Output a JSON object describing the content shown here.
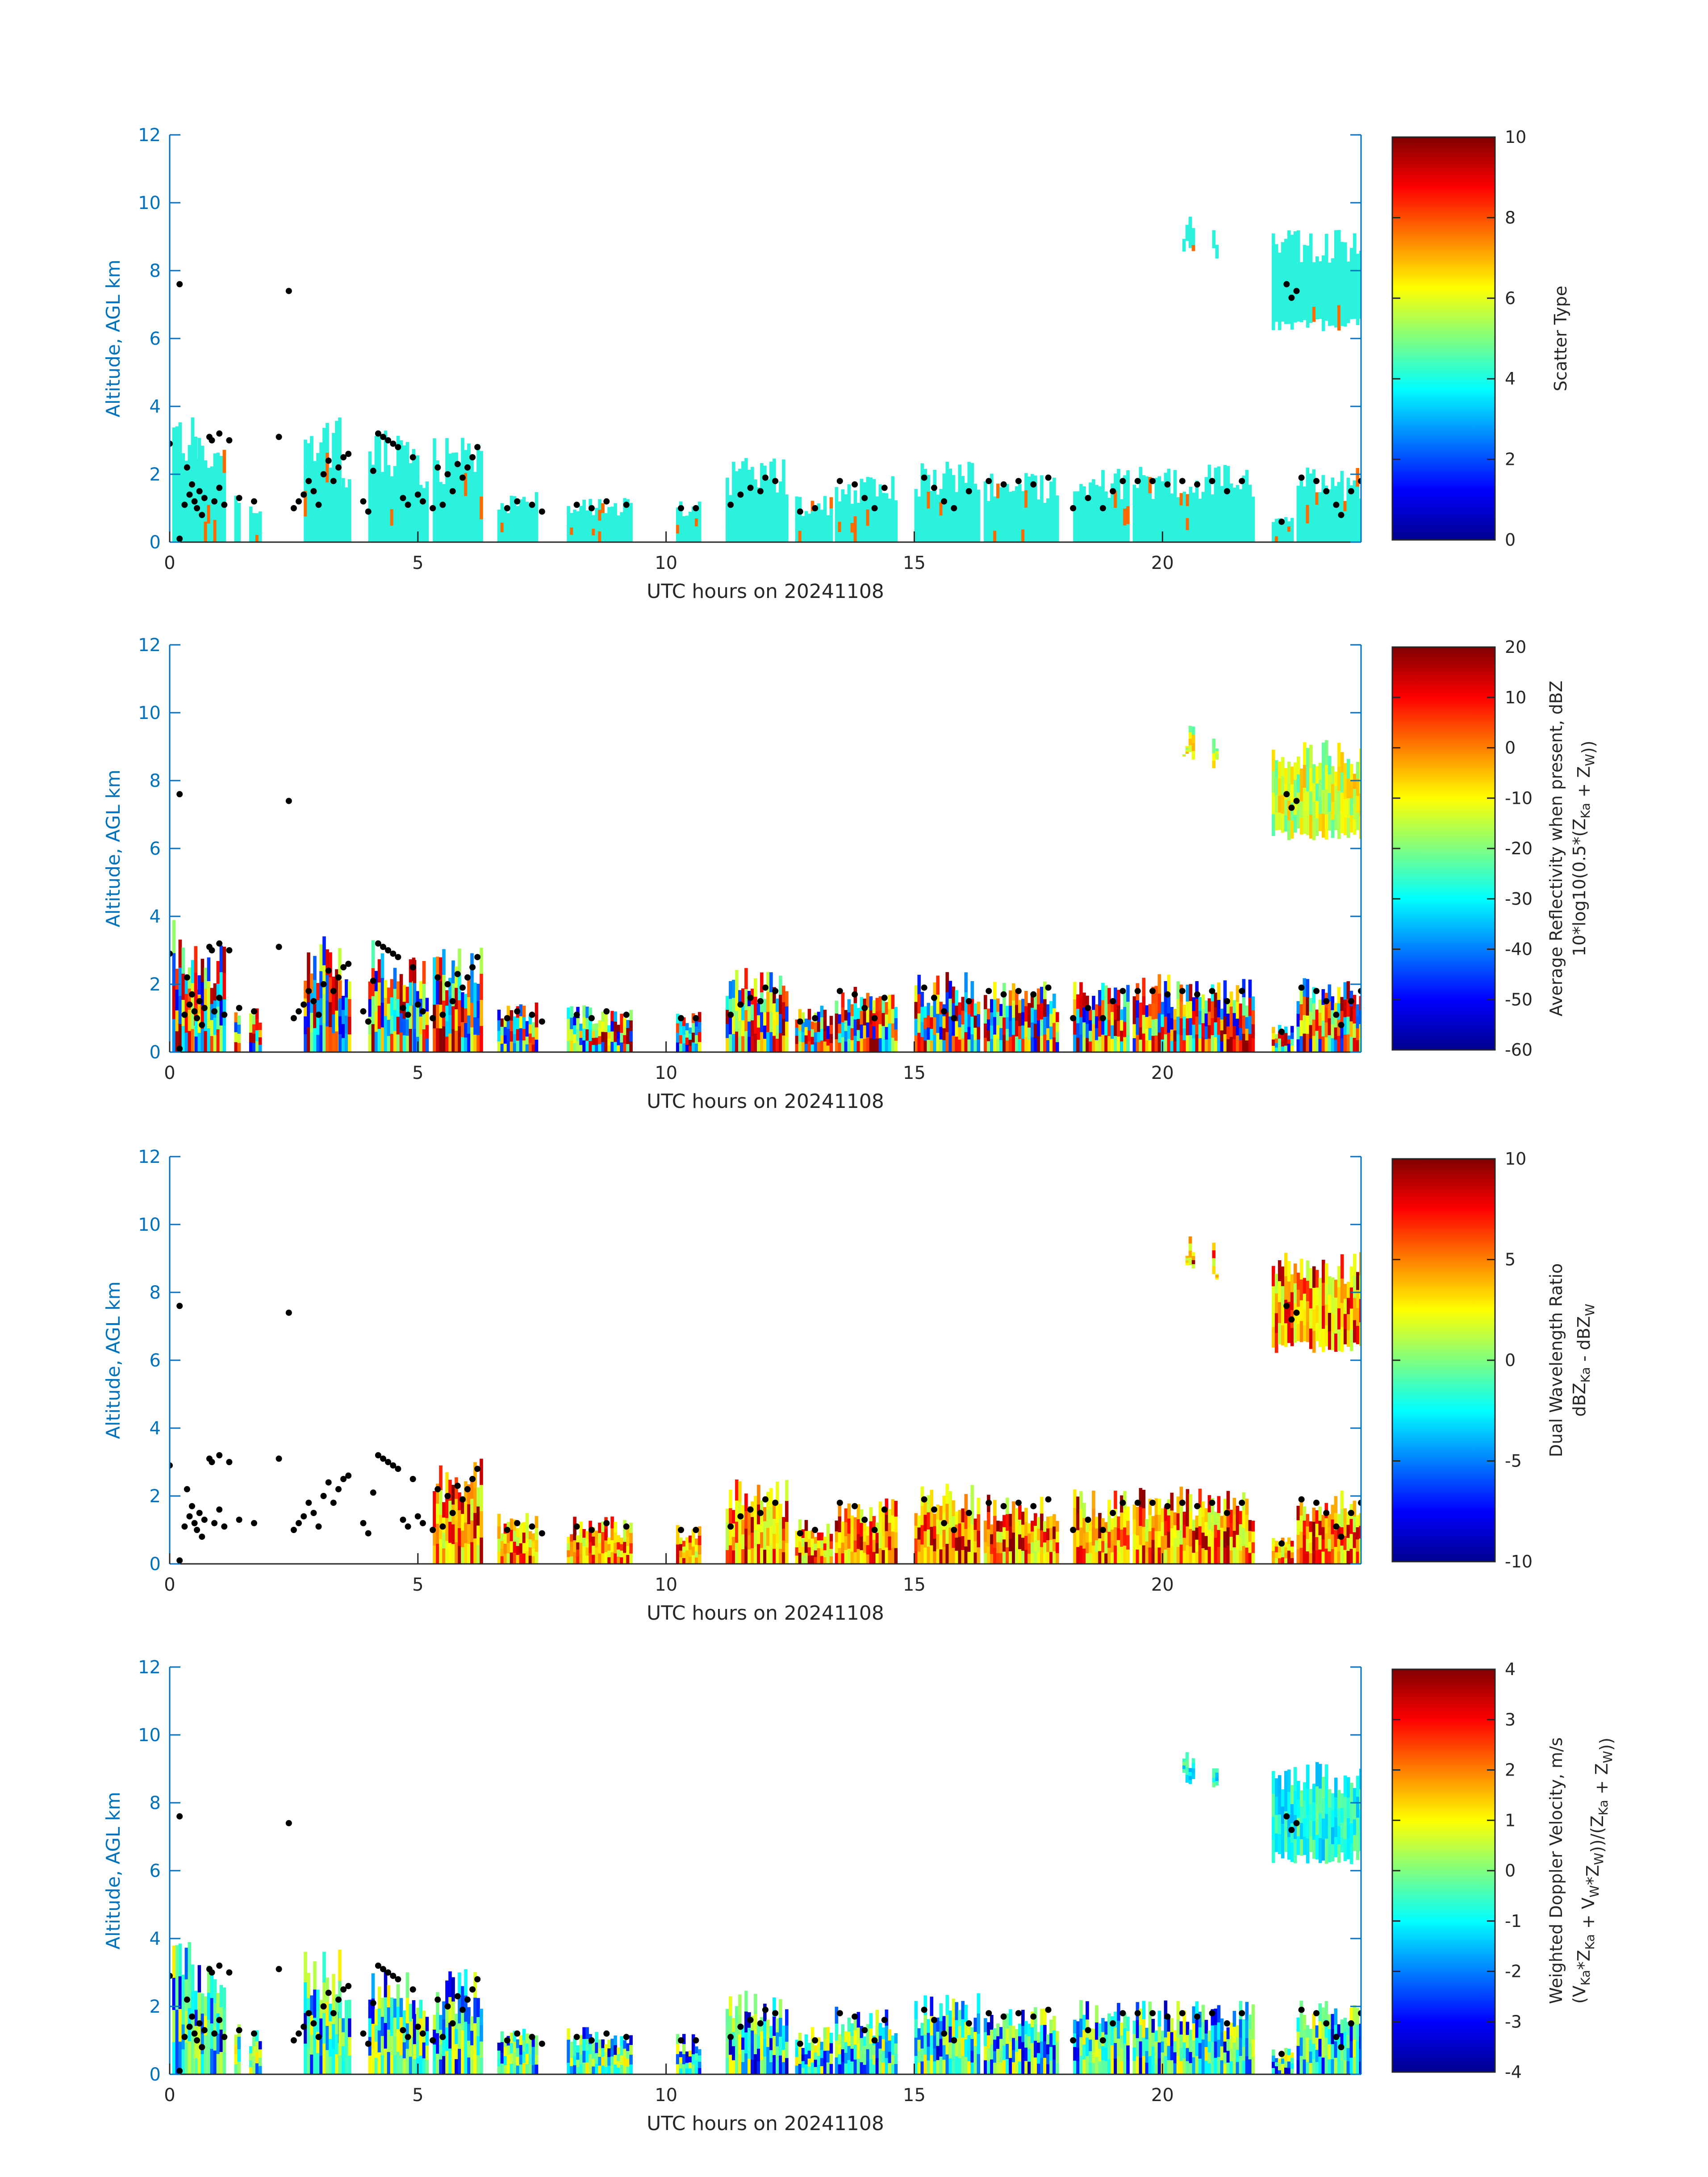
{
  "figure": {
    "xlabel": "UTC hours on 20241108",
    "ylabel": "Altitude, AGL km"
  },
  "chart_data": [
    {
      "type": "heatmap",
      "panel": "scatter-type",
      "xlim": [
        0,
        24
      ],
      "ylim": [
        0,
        12
      ],
      "x_ticks": [
        "0",
        "5",
        "10",
        "15",
        "20"
      ],
      "y_ticks": [
        "0",
        "2",
        "4",
        "6",
        "8",
        "10",
        "12"
      ],
      "colorbar": {
        "label_lines": [
          "Scatter Type"
        ],
        "range": [
          0,
          10
        ],
        "ticks": [
          "0",
          "2",
          "4",
          "6",
          "8",
          "10"
        ]
      },
      "description_mode": "mostly-cyan"
    },
    {
      "type": "heatmap",
      "panel": "reflectivity",
      "xlim": [
        0,
        24
      ],
      "ylim": [
        0,
        12
      ],
      "x_ticks": [
        "0",
        "5",
        "10",
        "15",
        "20"
      ],
      "y_ticks": [
        "0",
        "2",
        "4",
        "6",
        "8",
        "10",
        "12"
      ],
      "colorbar": {
        "label_lines": [
          "Average Reflectivity when present, dBZ",
          "10*log10(0.5*(Z_Ka + Z_W))"
        ],
        "range": [
          -60,
          20
        ],
        "ticks": [
          "-60",
          "-50",
          "-40",
          "-30",
          "-20",
          "-10",
          "0",
          "10",
          "20"
        ]
      },
      "description_mode": "reflectivity"
    },
    {
      "type": "heatmap",
      "panel": "dual-wavelength-ratio",
      "xlim": [
        0,
        24
      ],
      "ylim": [
        0,
        12
      ],
      "x_ticks": [
        "0",
        "5",
        "10",
        "15",
        "20"
      ],
      "y_ticks": [
        "0",
        "2",
        "4",
        "6",
        "8",
        "10",
        "12"
      ],
      "colorbar": {
        "label_lines": [
          "Dual Wavelength Ratio",
          "dBZ_Ka - dBZ_W"
        ],
        "range": [
          -10,
          10
        ],
        "ticks": [
          "-10",
          "-5",
          "0",
          "5",
          "10"
        ]
      },
      "description_mode": "dwr"
    },
    {
      "type": "heatmap",
      "panel": "doppler-velocity",
      "xlim": [
        0,
        24
      ],
      "ylim": [
        0,
        12
      ],
      "x_ticks": [
        "0",
        "5",
        "10",
        "15",
        "20"
      ],
      "y_ticks": [
        "0",
        "2",
        "4",
        "6",
        "8",
        "10",
        "12"
      ],
      "colorbar": {
        "label_lines": [
          "Weighted Doppler Velocity, m/s",
          "(V_Ka*Z_Ka + V_W*Z_W))/(Z_Ka + Z_W))"
        ],
        "range": [
          -4,
          4
        ],
        "ticks": [
          "-4",
          "-3",
          "-2",
          "-1",
          "0",
          "1",
          "2",
          "3",
          "4"
        ]
      },
      "description_mode": "velocity"
    }
  ],
  "cloud_regions": [
    {
      "x0": 0.05,
      "x1": 0.5,
      "ytop": 4.0
    },
    {
      "x0": 0.5,
      "x1": 1.1,
      "ytop": 3.3
    },
    {
      "x0": 1.3,
      "x1": 1.4,
      "ytop": 1.5
    },
    {
      "x0": 1.6,
      "x1": 1.8,
      "ytop": 1.3
    },
    {
      "x0": 2.7,
      "x1": 3.4,
      "ytop": 3.7
    },
    {
      "x0": 3.4,
      "x1": 3.6,
      "ytop": 2.4
    },
    {
      "x0": 4.0,
      "x1": 4.9,
      "ytop": 3.3
    },
    {
      "x0": 4.9,
      "x1": 5.2,
      "ytop": 2.8
    },
    {
      "x0": 5.3,
      "x1": 6.3,
      "ytop": 3.1
    },
    {
      "x0": 6.6,
      "x1": 7.4,
      "ytop": 1.5
    },
    {
      "x0": 8.0,
      "x1": 9.3,
      "ytop": 1.4
    },
    {
      "x0": 10.2,
      "x1": 10.7,
      "ytop": 1.2
    },
    {
      "x0": 11.2,
      "x1": 12.4,
      "ytop": 2.5
    },
    {
      "x0": 12.6,
      "x1": 13.3,
      "ytop": 1.4
    },
    {
      "x0": 13.4,
      "x1": 14.6,
      "ytop": 2.0
    },
    {
      "x0": 15.0,
      "x1": 16.3,
      "ytop": 2.4
    },
    {
      "x0": 16.4,
      "x1": 17.9,
      "ytop": 2.1
    },
    {
      "x0": 18.2,
      "x1": 19.3,
      "ytop": 2.2
    },
    {
      "x0": 19.4,
      "x1": 21.8,
      "ytop": 2.3
    },
    {
      "x0": 22.2,
      "x1": 22.6,
      "ytop": 0.8
    },
    {
      "x0": 22.7,
      "x1": 24.0,
      "ytop": 2.2
    },
    {
      "x0": 20.4,
      "x1": 20.6,
      "ytop": 9.7,
      "ybot": 8.5
    },
    {
      "x0": 21.0,
      "x1": 21.1,
      "ytop": 9.5,
      "ybot": 8.3
    },
    {
      "x0": 22.2,
      "x1": 24.0,
      "ytop": 9.2,
      "ybot": 6.2
    }
  ],
  "cloud_base_points": [
    [
      0.0,
      2.9
    ],
    [
      0.2,
      7.6
    ],
    [
      0.2,
      0.1
    ],
    [
      0.3,
      1.1
    ],
    [
      0.35,
      2.2
    ],
    [
      0.4,
      1.4
    ],
    [
      0.45,
      1.7
    ],
    [
      0.5,
      1.2
    ],
    [
      0.55,
      1.0
    ],
    [
      0.6,
      1.5
    ],
    [
      0.65,
      0.8
    ],
    [
      0.7,
      1.3
    ],
    [
      0.8,
      3.1
    ],
    [
      0.85,
      3.0
    ],
    [
      0.9,
      1.2
    ],
    [
      1.0,
      1.6
    ],
    [
      1.0,
      3.2
    ],
    [
      1.1,
      1.1
    ],
    [
      1.2,
      3.0
    ],
    [
      1.4,
      1.3
    ],
    [
      1.7,
      1.2
    ],
    [
      2.2,
      3.1
    ],
    [
      2.4,
      7.4
    ],
    [
      2.5,
      1.0
    ],
    [
      2.6,
      1.2
    ],
    [
      2.7,
      1.4
    ],
    [
      2.8,
      1.8
    ],
    [
      2.9,
      1.5
    ],
    [
      3.0,
      1.1
    ],
    [
      3.1,
      2.0
    ],
    [
      3.2,
      2.4
    ],
    [
      3.3,
      1.8
    ],
    [
      3.4,
      2.2
    ],
    [
      3.5,
      2.5
    ],
    [
      3.6,
      2.6
    ],
    [
      3.9,
      1.2
    ],
    [
      4.0,
      0.9
    ],
    [
      4.1,
      2.1
    ],
    [
      4.2,
      3.2
    ],
    [
      4.3,
      3.1
    ],
    [
      4.4,
      3.0
    ],
    [
      4.5,
      2.9
    ],
    [
      4.6,
      2.8
    ],
    [
      4.7,
      1.3
    ],
    [
      4.8,
      1.1
    ],
    [
      4.9,
      2.5
    ],
    [
      5.0,
      1.4
    ],
    [
      5.1,
      1.2
    ],
    [
      5.3,
      1.0
    ],
    [
      5.4,
      2.2
    ],
    [
      5.5,
      1.1
    ],
    [
      5.6,
      2.0
    ],
    [
      5.7,
      1.5
    ],
    [
      5.8,
      2.3
    ],
    [
      5.9,
      1.9
    ],
    [
      6.0,
      2.2
    ],
    [
      6.1,
      2.5
    ],
    [
      6.2,
      2.8
    ],
    [
      6.8,
      1.0
    ],
    [
      7.0,
      1.2
    ],
    [
      7.3,
      1.1
    ],
    [
      7.5,
      0.9
    ],
    [
      8.2,
      1.1
    ],
    [
      8.5,
      1.0
    ],
    [
      8.8,
      1.2
    ],
    [
      9.2,
      1.1
    ],
    [
      10.3,
      1.0
    ],
    [
      10.6,
      1.0
    ],
    [
      11.3,
      1.1
    ],
    [
      11.5,
      1.4
    ],
    [
      11.7,
      1.6
    ],
    [
      11.9,
      1.5
    ],
    [
      12.0,
      1.9
    ],
    [
      12.2,
      1.8
    ],
    [
      12.7,
      0.9
    ],
    [
      13.0,
      1.0
    ],
    [
      13.5,
      1.8
    ],
    [
      13.8,
      1.7
    ],
    [
      14.0,
      1.3
    ],
    [
      14.2,
      1.0
    ],
    [
      14.4,
      1.6
    ],
    [
      15.2,
      1.9
    ],
    [
      15.4,
      1.6
    ],
    [
      15.6,
      1.2
    ],
    [
      15.8,
      1.0
    ],
    [
      16.1,
      1.5
    ],
    [
      16.5,
      1.8
    ],
    [
      16.8,
      1.7
    ],
    [
      17.1,
      1.8
    ],
    [
      17.4,
      1.7
    ],
    [
      17.7,
      1.9
    ],
    [
      18.2,
      1.0
    ],
    [
      18.5,
      1.3
    ],
    [
      18.8,
      1.0
    ],
    [
      19.0,
      1.5
    ],
    [
      19.2,
      1.8
    ],
    [
      19.5,
      1.8
    ],
    [
      19.8,
      1.8
    ],
    [
      20.1,
      1.7
    ],
    [
      20.4,
      1.8
    ],
    [
      20.7,
      1.7
    ],
    [
      21.0,
      1.8
    ],
    [
      21.3,
      1.5
    ],
    [
      21.6,
      1.8
    ],
    [
      22.4,
      0.6
    ],
    [
      22.8,
      1.9
    ],
    [
      23.1,
      1.8
    ],
    [
      23.3,
      1.5
    ],
    [
      23.5,
      1.1
    ],
    [
      23.6,
      0.8
    ],
    [
      23.8,
      1.5
    ],
    [
      24.0,
      1.8
    ],
    [
      22.5,
      7.6
    ],
    [
      22.6,
      7.2
    ],
    [
      22.7,
      7.4
    ]
  ]
}
